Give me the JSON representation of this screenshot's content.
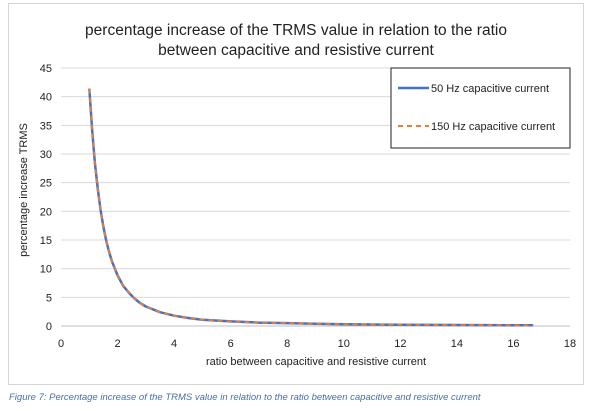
{
  "chart_data": {
    "type": "line",
    "title_lines": [
      "percentage increase of the TRMS value in relation to the ratio",
      "between capacitive and resistive current"
    ],
    "xlabel": "ratio between capacitive and resistive current",
    "ylabel": "percentage increase TRMS",
    "xlim": [
      0,
      18
    ],
    "ylim": [
      0,
      45
    ],
    "x_ticks": [
      "0",
      "2",
      "4",
      "6",
      "8",
      "10",
      "12",
      "14",
      "16",
      "18"
    ],
    "y_ticks": [
      "0",
      "5",
      "10",
      "15",
      "20",
      "25",
      "30",
      "35",
      "40",
      "45"
    ],
    "grid": "horizontal",
    "legend_position": "top-right",
    "series": [
      {
        "name": "50 Hz capacitive current",
        "color": "#4472c4",
        "style": "solid",
        "x": [
          1,
          1.1,
          1.2,
          1.3,
          1.4,
          1.5,
          1.6,
          1.7,
          1.8,
          2,
          2.2,
          2.4,
          2.6,
          2.8,
          3,
          3.5,
          4,
          4.5,
          5,
          6,
          7,
          8,
          9,
          10,
          11,
          12,
          13,
          14,
          15,
          16,
          16.7
        ],
        "y": [
          41.4,
          34.3,
          28.4,
          23.9,
          20.2,
          17.3,
          14.9,
          12.9,
          11.3,
          8.8,
          7.0,
          5.8,
          4.8,
          4.0,
          3.4,
          2.4,
          1.8,
          1.4,
          1.1,
          0.8,
          0.6,
          0.5,
          0.4,
          0.3,
          0.27,
          0.23,
          0.2,
          0.17,
          0.15,
          0.13,
          0.12
        ]
      },
      {
        "name": "150 Hz capacitive current",
        "color": "#ed7d31",
        "style": "dashed",
        "x": [
          1,
          1.1,
          1.2,
          1.3,
          1.4,
          1.5,
          1.6,
          1.7,
          1.8,
          2,
          2.2,
          2.4,
          2.6,
          2.8,
          3,
          3.5,
          4,
          4.5,
          5,
          6,
          7,
          8,
          9,
          10,
          11,
          12,
          13,
          14,
          15,
          16,
          16.7
        ],
        "y": [
          41.4,
          34.3,
          28.4,
          23.9,
          20.2,
          17.3,
          14.9,
          12.9,
          11.3,
          8.8,
          7.0,
          5.8,
          4.8,
          4.0,
          3.4,
          2.4,
          1.8,
          1.4,
          1.1,
          0.8,
          0.6,
          0.5,
          0.4,
          0.3,
          0.27,
          0.23,
          0.2,
          0.17,
          0.15,
          0.13,
          0.12
        ]
      }
    ]
  },
  "caption": "Figure 7: Percentage increase of the TRMS value in relation to the ratio between capacitive and resistive current"
}
